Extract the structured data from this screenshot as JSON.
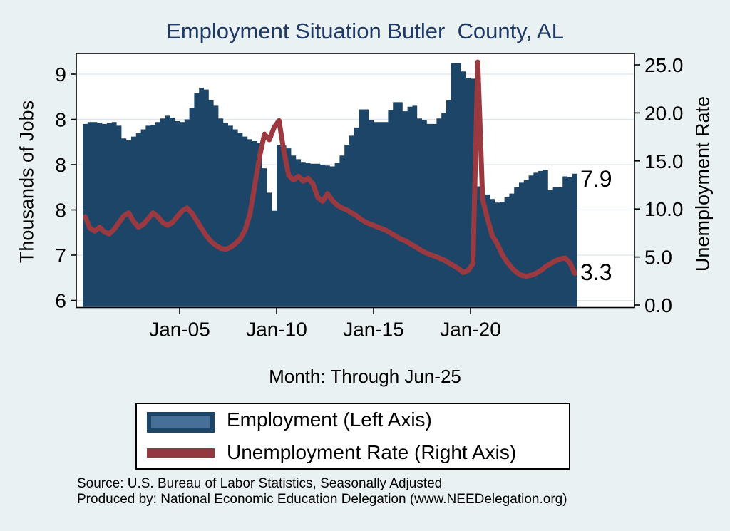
{
  "title": "Employment Situation Butler  County, AL",
  "subtitle": "Month: Through Jun-25",
  "axes": {
    "left": {
      "title": "Thousands of Jobs",
      "tick_labels": [
        "9",
        "8",
        "8",
        "8",
        "7",
        "6"
      ]
    },
    "right": {
      "title": "Unemployment Rate",
      "tick_labels": [
        "25.0",
        "20.0",
        "15.0",
        "10.0",
        "5.0",
        "0.0"
      ],
      "tick_values": [
        25,
        20,
        15,
        10,
        5,
        0
      ]
    },
    "x": {
      "tick_labels": [
        "Jan-05",
        "Jan-10",
        "Jan-15",
        "Jan-20"
      ],
      "tick_years": [
        2005,
        2010,
        2015,
        2020
      ]
    }
  },
  "end_labels": {
    "employment": "7.9",
    "unemployment": "3.3"
  },
  "legend": {
    "items": [
      {
        "label": "Employment (Left Axis)",
        "swatch": "blue-area-swatch"
      },
      {
        "label": "Unemployment Rate (Right Axis)",
        "swatch": "red-line-swatch"
      }
    ]
  },
  "footer": {
    "source": "Source: U.S. Bureau of Labor Statistics, Seasonally Adjusted",
    "produced_by": "Produced by: National Economic Education Delegation (www.NEEDelegation.org)"
  },
  "colors": {
    "background": "#eaf1f3",
    "plot_background": "#ffffff",
    "employment_fill": "#1d4568",
    "legend_employment_inner": "#477099",
    "unemployment_line": "#9a3a40",
    "gridline": "#dce8ef",
    "frame": "#000000",
    "title_text": "#1f3a66"
  },
  "chart_data": {
    "type": "area",
    "title": "Employment Situation Butler  County, AL",
    "subtitle": "Month: Through Jun-25",
    "x_start": 2000.0,
    "x_step_years": 0.25,
    "x_end_label": "Jun-25",
    "x_ticks": [
      "Jan-05",
      "Jan-10",
      "Jan-15",
      "Jan-20"
    ],
    "left_axis": {
      "label": "Thousands of Jobs",
      "tick_labels_bottom_to_top": [
        "6",
        "7",
        "8",
        "8",
        "8",
        "9"
      ]
    },
    "right_axis": {
      "label": "Unemployment Rate",
      "range": [
        0,
        25
      ]
    },
    "legend_position": "bottom",
    "grid": true,
    "series": [
      {
        "name": "Employment (Left Axis)",
        "type": "area",
        "axis": "left",
        "unit": "thousands of jobs",
        "color": "#1d4568",
        "last_value_label": "7.9",
        "values": [
          8.45,
          8.47,
          8.47,
          8.46,
          8.45,
          8.46,
          8.47,
          8.43,
          8.29,
          8.27,
          8.31,
          8.35,
          8.39,
          8.43,
          8.44,
          8.47,
          8.51,
          8.54,
          8.52,
          8.48,
          8.47,
          8.5,
          8.63,
          8.79,
          8.85,
          8.83,
          8.71,
          8.65,
          8.51,
          8.46,
          8.43,
          8.39,
          8.35,
          8.31,
          8.28,
          8.26,
          8.24,
          7.96,
          7.69,
          7.49,
          8.22,
          8.21,
          8.18,
          8.1,
          8.06,
          8.03,
          8.02,
          8.01,
          8.01,
          8.0,
          7.99,
          7.98,
          8.02,
          8.1,
          8.22,
          8.32,
          8.41,
          8.61,
          8.61,
          8.49,
          8.47,
          8.47,
          8.47,
          8.6,
          8.69,
          8.69,
          8.59,
          8.64,
          8.65,
          8.51,
          8.49,
          8.45,
          8.45,
          8.51,
          8.57,
          8.71,
          9.12,
          9.12,
          9.03,
          8.96,
          8.95,
          7.76,
          7.72,
          7.67,
          7.62,
          7.58,
          7.59,
          7.64,
          7.68,
          7.75,
          7.8,
          7.83,
          7.88,
          7.91,
          7.93,
          7.94,
          7.72,
          7.75,
          7.75,
          7.87,
          7.86,
          7.9
        ]
      },
      {
        "name": "Unemployment Rate (Right Axis)",
        "type": "line",
        "axis": "right",
        "unit": "percent",
        "color": "#9a3a40",
        "last_value_label": "3.3",
        "values": [
          9.2,
          8.0,
          7.7,
          8.1,
          7.6,
          7.4,
          7.9,
          8.6,
          9.3,
          9.6,
          8.7,
          8.1,
          8.4,
          9.0,
          9.6,
          9.2,
          8.6,
          8.3,
          8.6,
          9.2,
          9.8,
          10.1,
          9.6,
          8.8,
          8.0,
          7.2,
          6.6,
          6.2,
          5.9,
          5.8,
          6.0,
          6.4,
          6.9,
          7.8,
          9.5,
          12.5,
          15.5,
          17.8,
          17.2,
          18.5,
          19.2,
          16.0,
          13.5,
          13.0,
          13.4,
          12.9,
          13.2,
          12.6,
          11.2,
          10.8,
          11.6,
          10.9,
          10.4,
          10.1,
          9.9,
          9.6,
          9.3,
          8.9,
          8.6,
          8.4,
          8.2,
          8.0,
          7.8,
          7.5,
          7.2,
          6.9,
          6.7,
          6.4,
          6.1,
          5.8,
          5.5,
          5.3,
          5.1,
          4.9,
          4.7,
          4.4,
          4.1,
          3.8,
          3.4,
          3.6,
          4.3,
          25.3,
          11.0,
          9.0,
          7.2,
          6.4,
          5.3,
          4.5,
          3.9,
          3.4,
          3.1,
          3.0,
          3.1,
          3.3,
          3.6,
          4.0,
          4.3,
          4.6,
          4.8,
          4.9,
          4.4,
          3.3
        ]
      }
    ]
  }
}
